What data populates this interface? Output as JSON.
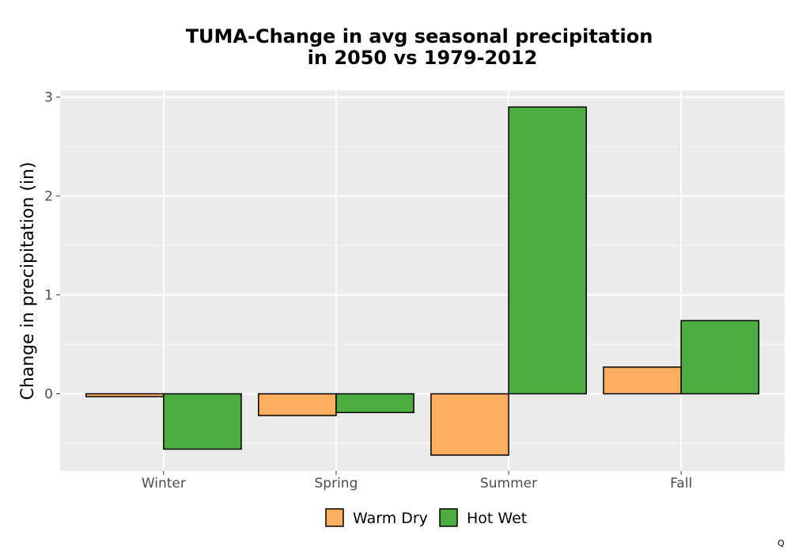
{
  "chart_data": {
    "type": "bar",
    "title": [
      "TUMA-Change in avg seasonal precipitation",
      "in 2050 vs 1979-2012"
    ],
    "xlabel": "",
    "ylabel": "Change in precipitation (in)",
    "categories": [
      "Winter",
      "Spring",
      "Summer",
      "Fall"
    ],
    "series": [
      {
        "name": "Warm Dry",
        "color": "#fdae61",
        "values": [
          -0.03,
          -0.22,
          -0.62,
          0.27
        ]
      },
      {
        "name": "Hot Wet",
        "color": "#4dac41",
        "values": [
          -0.56,
          -0.19,
          2.9,
          0.74
        ]
      }
    ],
    "ylim": [
      -0.78,
      3.07
    ],
    "yticks": [
      0,
      1,
      2,
      3
    ],
    "grid": true,
    "legend_position": "bottom"
  },
  "corner_mark": "Q"
}
